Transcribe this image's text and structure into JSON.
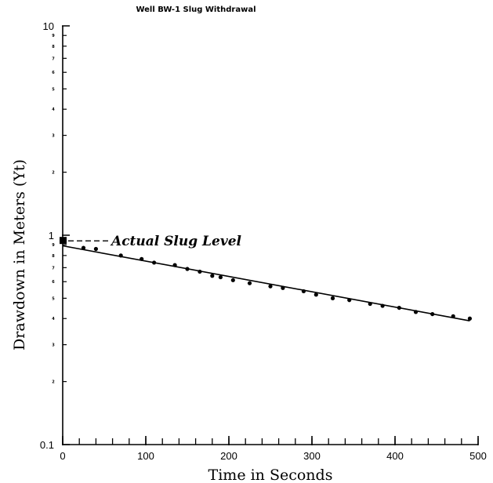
{
  "chart_data": {
    "type": "scatter",
    "title": "Well BW-1 Slug Withdrawal",
    "xlabel": "Time in Seconds",
    "ylabel": "Drawdown in Meters (Yt)",
    "xlim": [
      0,
      500
    ],
    "ylim": [
      0.1,
      10
    ],
    "yscale": "log",
    "grid": false,
    "x_ticks": [
      0,
      100,
      200,
      300,
      400,
      500
    ],
    "x_tick_labels": [
      "0",
      "100",
      "200",
      "300",
      "400",
      "500"
    ],
    "y_major_ticks": [
      0.1,
      1,
      10
    ],
    "y_major_tick_labels": [
      "0.1",
      "1",
      "10"
    ],
    "y_minor_tick_labels": [
      "2",
      "3",
      "4",
      "5",
      "6",
      "7",
      "8",
      "9"
    ],
    "series": [
      {
        "marker": "circle",
        "x": [
          25,
          40,
          70,
          95,
          110,
          135,
          150,
          165,
          180,
          190,
          205,
          225,
          250,
          265,
          290,
          305,
          325,
          345,
          370,
          385,
          405,
          425,
          445,
          470,
          490
        ],
        "y": [
          0.87,
          0.86,
          0.8,
          0.77,
          0.74,
          0.72,
          0.69,
          0.67,
          0.64,
          0.63,
          0.61,
          0.59,
          0.57,
          0.56,
          0.54,
          0.52,
          0.5,
          0.49,
          0.47,
          0.46,
          0.45,
          0.43,
          0.42,
          0.41,
          0.4
        ]
      }
    ],
    "fit_line": {
      "x": [
        0,
        490
      ],
      "y": [
        0.89,
        0.39
      ]
    },
    "annotations": [
      {
        "text": "Actual Slug Level",
        "x": 0,
        "y": 0.94,
        "marker": "square"
      }
    ]
  }
}
